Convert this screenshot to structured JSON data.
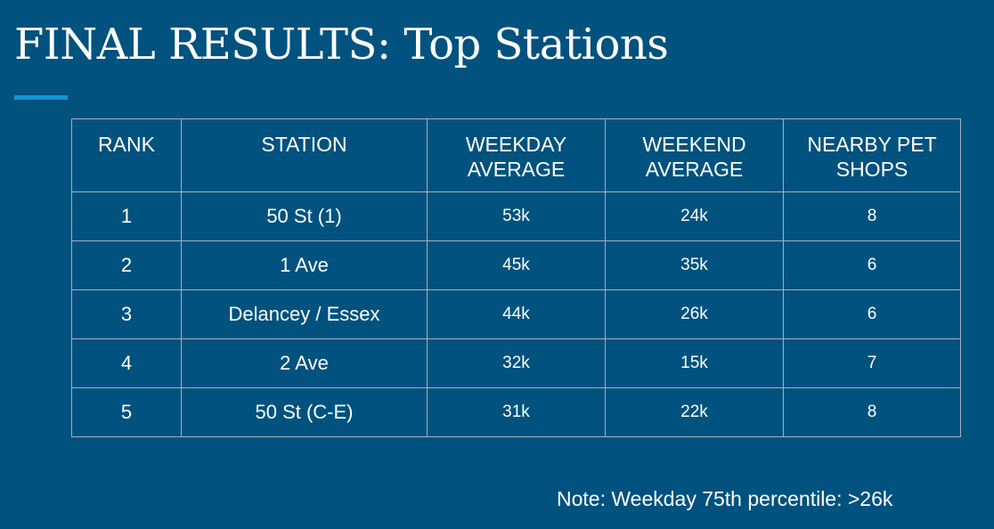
{
  "title": "FINAL RESULTS: Top Stations",
  "accent_color": "#0d97d7",
  "background_color": "#01527e",
  "table": {
    "headers": {
      "rank": "RANK",
      "station": "STATION",
      "weekday": [
        "WEEKDAY",
        "AVERAGE"
      ],
      "weekend": [
        "WEEKEND",
        "AVERAGE"
      ],
      "pet_shops": [
        "NEARBY PET",
        "SHOPS"
      ]
    },
    "rows": [
      {
        "rank": "1",
        "station": "50 St (1)",
        "weekday": "53k",
        "weekend": "24k",
        "pet_shops": "8"
      },
      {
        "rank": "2",
        "station": "1 Ave",
        "weekday": "45k",
        "weekend": "35k",
        "pet_shops": "6"
      },
      {
        "rank": "3",
        "station": "Delancey / Essex",
        "weekday": "44k",
        "weekend": "26k",
        "pet_shops": "6"
      },
      {
        "rank": "4",
        "station": "2 Ave",
        "weekday": "32k",
        "weekend": "15k",
        "pet_shops": "7"
      },
      {
        "rank": "5",
        "station": "50 St (C-E)",
        "weekday": "31k",
        "weekend": "22k",
        "pet_shops": "8"
      }
    ]
  },
  "note": "Note: Weekday 75th percentile: >26k"
}
